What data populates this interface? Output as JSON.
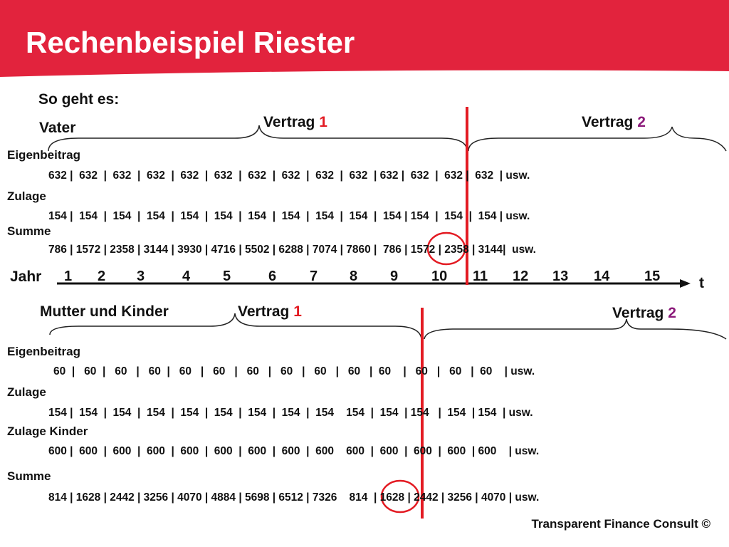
{
  "title": "Rechenbeispiel Riester",
  "intro": "So geht es:",
  "colors": {
    "banner": "#e2233d",
    "marker": "#e31b23",
    "accent_purple": "#8b1a7a"
  },
  "vater": {
    "heading": "Vater",
    "contract1": {
      "word": "Vertrag",
      "num": "1"
    },
    "contract2": {
      "word": "Vertrag",
      "num": "2"
    },
    "eigenbeitrag_label": "Eigenbeitrag",
    "eigenbeitrag_row": "632 |  632  |  632  |  632  |  632  |  632  |  632  |  632  |  632  |  632  | 632 |  632  |  632 |  632  | usw.",
    "zulage_label": "Zulage",
    "zulage_row": "154 |  154  |  154  |  154  |  154  |  154  |  154  |  154  |  154  |  154  |  154 | 154  |  154  |  154 | usw.",
    "summe_label": "Summe",
    "summe_row": "786 | 1572 | 2358 | 3144 | 3930 | 4716 | 5502 | 6288 | 7074 | 7860 |  786 | 1572 | 2358 | 3144|  usw."
  },
  "timeline": {
    "label": "Jahr",
    "years": [
      "1",
      "2",
      "3",
      "4",
      "5",
      "6",
      "7",
      "8",
      "9",
      "10",
      "11",
      "12",
      "13",
      "14",
      "15"
    ],
    "axis_label": "t"
  },
  "mutter": {
    "heading": "Mutter und Kinder",
    "contract1": {
      "word": "Vertrag",
      "num": "1"
    },
    "contract2": {
      "word": "Vertrag",
      "num": "2"
    },
    "eigenbeitrag_label": "Eigenbeitrag",
    "eigenbeitrag_row": "60  |   60  |   60   |   60  |   60   |   60   |   60   |   60   |   60   |   60   |  60    |   60   |   60   |  60    | usw.",
    "zulage_label": "Zulage",
    "zulage_row": "154 |  154  |  154  |  154  |  154  |  154  |  154  |  154  |  154    154  |  154  | 154   |  154  | 154  | usw.",
    "zulage_kinder_label": "Zulage Kinder",
    "zulage_kinder_row": "600 |  600  |  600  |  600  |  600  |  600  |  600  |  600  |  600    600  |  600  |  600  |  600  | 600    | usw.",
    "summe_label": "Summe",
    "summe_row": "814 | 1628 | 2442 | 3256 | 4070 | 4884 | 5698 | 6512 | 7326    814  | 1628 | 2442 | 3256 | 4070 | usw."
  },
  "footer": "Transparent Finance Consult ©"
}
